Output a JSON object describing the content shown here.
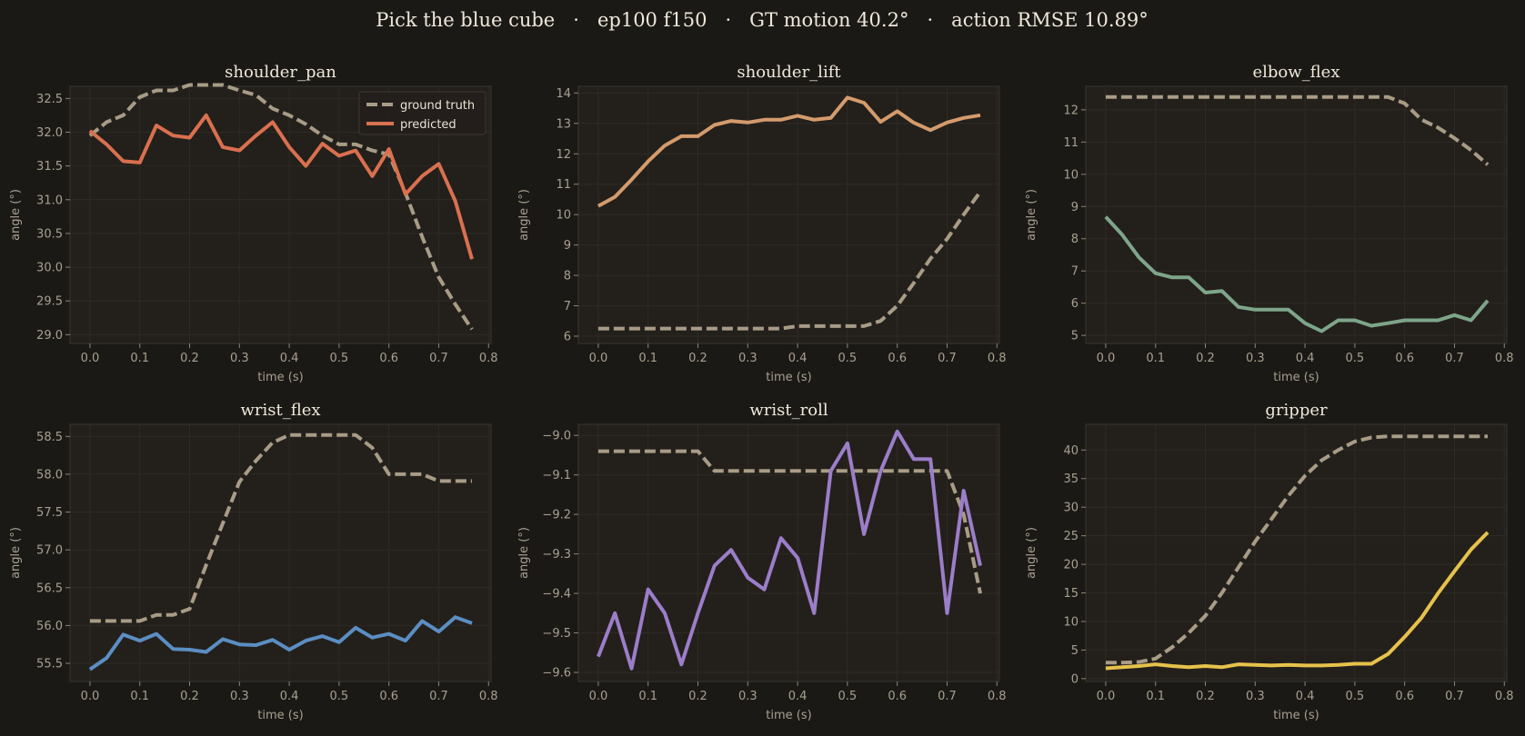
{
  "suptitle": "Pick the blue cube   ·   ep100 f150   ·   GT motion 40.2°   ·   action RMSE 10.89°",
  "legend": {
    "gt_label": "ground truth",
    "pred_label": "predicted",
    "gt_color": "#a89c86"
  },
  "chart_data": [
    {
      "type": "line",
      "title": "shoulder_pan",
      "xlabel": "time (s)",
      "ylabel": "angle (°)",
      "xlim": [
        -0.04,
        0.805
      ],
      "ylim": [
        28.87,
        32.68
      ],
      "xticks": [
        0.0,
        0.1,
        0.2,
        0.3,
        0.4,
        0.5,
        0.6,
        0.7,
        0.8
      ],
      "xtick_labels": [
        "0.0",
        "0.1",
        "0.2",
        "0.3",
        "0.4",
        "0.5",
        "0.6",
        "0.7",
        "0.8"
      ],
      "yticks": [
        29.0,
        29.5,
        30.0,
        30.5,
        31.0,
        31.5,
        32.0,
        32.5
      ],
      "ytick_labels": [
        "29.0",
        "29.5",
        "30.0",
        "30.5",
        "31.0",
        "31.5",
        "32.0",
        "32.5"
      ],
      "grid": true,
      "legend_position": "upper right",
      "pred_color": "#d9704f",
      "x": [
        0.0,
        0.0333,
        0.0667,
        0.1,
        0.1333,
        0.1667,
        0.2,
        0.2333,
        0.2667,
        0.3,
        0.3333,
        0.3667,
        0.4,
        0.4333,
        0.4667,
        0.5,
        0.5333,
        0.5667,
        0.6,
        0.6333,
        0.6667,
        0.7,
        0.7333,
        0.7667
      ],
      "series": [
        {
          "name": "ground truth",
          "values": [
            31.95,
            32.15,
            32.25,
            32.52,
            32.62,
            32.62,
            32.7,
            32.7,
            32.7,
            32.62,
            32.55,
            32.35,
            32.25,
            32.12,
            31.95,
            31.82,
            31.82,
            31.73,
            31.67,
            31.1,
            30.45,
            29.85,
            29.45,
            29.08
          ]
        },
        {
          "name": "predicted",
          "values": [
            32.02,
            31.82,
            31.57,
            31.55,
            32.1,
            31.95,
            31.92,
            32.25,
            31.78,
            31.73,
            31.95,
            32.15,
            31.78,
            31.5,
            31.83,
            31.65,
            31.73,
            31.35,
            31.75,
            31.08,
            31.35,
            31.53,
            30.98,
            30.12
          ]
        }
      ]
    },
    {
      "type": "line",
      "title": "shoulder_lift",
      "xlabel": "time (s)",
      "ylabel": "angle (°)",
      "xlim": [
        -0.04,
        0.805
      ],
      "ylim": [
        5.76,
        14.22
      ],
      "xticks": [
        0.0,
        0.1,
        0.2,
        0.3,
        0.4,
        0.5,
        0.6,
        0.7,
        0.8
      ],
      "xtick_labels": [
        "0.0",
        "0.1",
        "0.2",
        "0.3",
        "0.4",
        "0.5",
        "0.6",
        "0.7",
        "0.8"
      ],
      "yticks": [
        6,
        7,
        8,
        9,
        10,
        11,
        12,
        13,
        14
      ],
      "ytick_labels": [
        "6",
        "7",
        "8",
        "9",
        "10",
        "11",
        "12",
        "13",
        "14"
      ],
      "grid": true,
      "pred_color": "#d49b6c",
      "x": [
        0.0,
        0.0333,
        0.0667,
        0.1,
        0.1333,
        0.1667,
        0.2,
        0.2333,
        0.2667,
        0.3,
        0.3333,
        0.3667,
        0.4,
        0.4333,
        0.4667,
        0.5,
        0.5333,
        0.5667,
        0.6,
        0.6333,
        0.6667,
        0.7,
        0.7333,
        0.7667
      ],
      "series": [
        {
          "name": "ground truth",
          "values": [
            6.25,
            6.25,
            6.25,
            6.25,
            6.25,
            6.25,
            6.25,
            6.25,
            6.25,
            6.25,
            6.25,
            6.25,
            6.33,
            6.33,
            6.33,
            6.33,
            6.33,
            6.5,
            7.0,
            7.75,
            8.55,
            9.2,
            10.0,
            10.75
          ]
        },
        {
          "name": "predicted",
          "values": [
            10.28,
            10.58,
            11.15,
            11.75,
            12.27,
            12.58,
            12.58,
            12.95,
            13.08,
            13.03,
            13.12,
            13.12,
            13.25,
            13.12,
            13.18,
            13.85,
            13.68,
            13.05,
            13.4,
            13.02,
            12.78,
            13.03,
            13.18,
            13.27
          ]
        }
      ]
    },
    {
      "type": "line",
      "title": "elbow_flex",
      "xlabel": "time (s)",
      "ylabel": "angle (°)",
      "xlim": [
        -0.04,
        0.805
      ],
      "ylim": [
        4.75,
        12.73
      ],
      "xticks": [
        0.0,
        0.1,
        0.2,
        0.3,
        0.4,
        0.5,
        0.6,
        0.7,
        0.8
      ],
      "xtick_labels": [
        "0.0",
        "0.1",
        "0.2",
        "0.3",
        "0.4",
        "0.5",
        "0.6",
        "0.7",
        "0.8"
      ],
      "yticks": [
        5,
        6,
        7,
        8,
        9,
        10,
        11,
        12
      ],
      "ytick_labels": [
        "5",
        "6",
        "7",
        "8",
        "9",
        "10",
        "11",
        "12"
      ],
      "grid": true,
      "pred_color": "#7ea58a",
      "x": [
        0.0,
        0.0333,
        0.0667,
        0.1,
        0.1333,
        0.1667,
        0.2,
        0.2333,
        0.2667,
        0.3,
        0.3333,
        0.3667,
        0.4,
        0.4333,
        0.4667,
        0.5,
        0.5333,
        0.5667,
        0.6,
        0.6333,
        0.6667,
        0.7,
        0.7333,
        0.7667
      ],
      "series": [
        {
          "name": "ground truth",
          "values": [
            12.4,
            12.4,
            12.4,
            12.4,
            12.4,
            12.4,
            12.4,
            12.4,
            12.4,
            12.4,
            12.4,
            12.4,
            12.4,
            12.4,
            12.4,
            12.4,
            12.4,
            12.4,
            12.2,
            11.7,
            11.45,
            11.12,
            10.75,
            10.3
          ]
        },
        {
          "name": "predicted",
          "values": [
            8.68,
            8.12,
            7.42,
            6.93,
            6.8,
            6.8,
            6.33,
            6.38,
            5.88,
            5.8,
            5.8,
            5.8,
            5.38,
            5.13,
            5.47,
            5.47,
            5.3,
            5.38,
            5.47,
            5.47,
            5.47,
            5.63,
            5.47,
            6.08
          ]
        }
      ]
    },
    {
      "type": "line",
      "title": "wrist_flex",
      "xlabel": "time (s)",
      "ylabel": "angle (°)",
      "xlim": [
        -0.04,
        0.805
      ],
      "ylim": [
        55.26,
        58.66
      ],
      "xticks": [
        0.0,
        0.1,
        0.2,
        0.3,
        0.4,
        0.5,
        0.6,
        0.7,
        0.8
      ],
      "xtick_labels": [
        "0.0",
        "0.1",
        "0.2",
        "0.3",
        "0.4",
        "0.5",
        "0.6",
        "0.7",
        "0.8"
      ],
      "yticks": [
        55.5,
        56.0,
        56.5,
        57.0,
        57.5,
        58.0,
        58.5
      ],
      "ytick_labels": [
        "55.5",
        "56.0",
        "56.5",
        "57.0",
        "57.5",
        "58.0",
        "58.5"
      ],
      "grid": true,
      "pred_color": "#5b8ec2",
      "x": [
        0.0,
        0.0333,
        0.0667,
        0.1,
        0.1333,
        0.1667,
        0.2,
        0.2333,
        0.2667,
        0.3,
        0.3333,
        0.3667,
        0.4,
        0.4333,
        0.4667,
        0.5,
        0.5333,
        0.5667,
        0.6,
        0.6333,
        0.6667,
        0.7,
        0.7333,
        0.7667
      ],
      "series": [
        {
          "name": "ground truth",
          "values": [
            56.06,
            56.06,
            56.06,
            56.06,
            56.14,
            56.14,
            56.22,
            56.8,
            57.35,
            57.9,
            58.18,
            58.42,
            58.52,
            58.52,
            58.52,
            58.52,
            58.52,
            58.35,
            58.0,
            58.0,
            58.0,
            57.91,
            57.91,
            57.91
          ]
        },
        {
          "name": "predicted",
          "values": [
            55.42,
            55.57,
            55.88,
            55.8,
            55.89,
            55.69,
            55.68,
            55.65,
            55.82,
            55.75,
            55.74,
            55.81,
            55.68,
            55.8,
            55.86,
            55.78,
            55.97,
            55.84,
            55.89,
            55.8,
            56.06,
            55.92,
            56.11,
            56.03
          ]
        }
      ]
    },
    {
      "type": "line",
      "title": "wrist_roll",
      "xlabel": "time (s)",
      "ylabel": "angle (°)",
      "xlim": [
        -0.04,
        0.805
      ],
      "ylim": [
        -9.623,
        -8.972
      ],
      "xticks": [
        0.0,
        0.1,
        0.2,
        0.3,
        0.4,
        0.5,
        0.6,
        0.7,
        0.8
      ],
      "xtick_labels": [
        "0.0",
        "0.1",
        "0.2",
        "0.3",
        "0.4",
        "0.5",
        "0.6",
        "0.7",
        "0.8"
      ],
      "yticks": [
        -9.6,
        -9.5,
        -9.4,
        -9.3,
        -9.2,
        -9.1,
        -9.0
      ],
      "ytick_labels": [
        "−9.6",
        "−9.5",
        "−9.4",
        "−9.3",
        "−9.2",
        "−9.1",
        "−9.0"
      ],
      "grid": true,
      "pred_color": "#9b7ec9",
      "x": [
        0.0,
        0.0333,
        0.0667,
        0.1,
        0.1333,
        0.1667,
        0.2,
        0.2333,
        0.2667,
        0.3,
        0.3333,
        0.3667,
        0.4,
        0.4333,
        0.4667,
        0.5,
        0.5333,
        0.5667,
        0.6,
        0.6333,
        0.6667,
        0.7,
        0.7333,
        0.7667
      ],
      "series": [
        {
          "name": "ground truth",
          "values": [
            -9.04,
            -9.04,
            -9.04,
            -9.04,
            -9.04,
            -9.04,
            -9.04,
            -9.09,
            -9.09,
            -9.09,
            -9.09,
            -9.09,
            -9.09,
            -9.09,
            -9.09,
            -9.09,
            -9.09,
            -9.09,
            -9.09,
            -9.09,
            -9.09,
            -9.09,
            -9.2,
            -9.4
          ]
        },
        {
          "name": "predicted",
          "values": [
            -9.56,
            -9.45,
            -9.59,
            -9.39,
            -9.45,
            -9.58,
            -9.45,
            -9.33,
            -9.29,
            -9.36,
            -9.39,
            -9.26,
            -9.31,
            -9.45,
            -9.09,
            -9.02,
            -9.25,
            -9.09,
            -8.99,
            -9.06,
            -9.06,
            -9.45,
            -9.14,
            -9.33
          ]
        }
      ]
    },
    {
      "type": "line",
      "title": "gripper",
      "xlabel": "time (s)",
      "ylabel": "angle (°)",
      "xlim": [
        -0.04,
        0.805
      ],
      "ylim": [
        -0.5,
        44.5
      ],
      "xticks": [
        0.0,
        0.1,
        0.2,
        0.3,
        0.4,
        0.5,
        0.6,
        0.7,
        0.8
      ],
      "xtick_labels": [
        "0.0",
        "0.1",
        "0.2",
        "0.3",
        "0.4",
        "0.5",
        "0.6",
        "0.7",
        "0.8"
      ],
      "yticks": [
        0,
        5,
        10,
        15,
        20,
        25,
        30,
        35,
        40
      ],
      "ytick_labels": [
        "0",
        "5",
        "10",
        "15",
        "20",
        "25",
        "30",
        "35",
        "40"
      ],
      "grid": true,
      "pred_color": "#e6c24b",
      "x": [
        0.0,
        0.0333,
        0.0667,
        0.1,
        0.1333,
        0.1667,
        0.2,
        0.2333,
        0.2667,
        0.3,
        0.3333,
        0.3667,
        0.4,
        0.4333,
        0.4667,
        0.5,
        0.5333,
        0.5667,
        0.6,
        0.6333,
        0.6667,
        0.7,
        0.7333,
        0.7667
      ],
      "series": [
        {
          "name": "ground truth",
          "values": [
            2.8,
            2.8,
            2.9,
            3.5,
            5.5,
            8.0,
            11.0,
            15.0,
            19.5,
            24.0,
            28.0,
            32.0,
            35.5,
            38.2,
            40.0,
            41.5,
            42.2,
            42.4,
            42.4,
            42.4,
            42.4,
            42.4,
            42.4,
            42.4
          ]
        },
        {
          "name": "predicted",
          "values": [
            1.8,
            2.0,
            2.2,
            2.5,
            2.2,
            2.0,
            2.2,
            2.0,
            2.5,
            2.4,
            2.3,
            2.4,
            2.3,
            2.3,
            2.4,
            2.6,
            2.6,
            4.3,
            7.3,
            10.6,
            14.9,
            18.8,
            22.6,
            25.6
          ]
        }
      ]
    }
  ]
}
